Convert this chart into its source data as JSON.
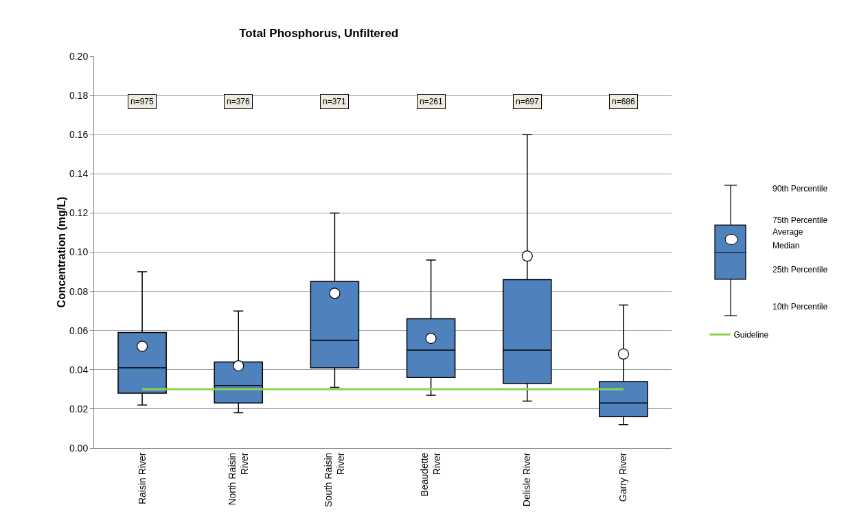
{
  "chart_data": {
    "type": "box",
    "title": "Total Phosphorus, Unfiltered",
    "ylabel": "Concentration (mg/L)",
    "categories": [
      "Raisin River",
      "North Raisin River",
      "South Raisin River",
      "Beaudette River",
      "Delisle River",
      "Garry River"
    ],
    "color": "#4f81bd",
    "boxes": [
      {
        "low": 0.022,
        "q1": 0.028,
        "median": 0.041,
        "q3": 0.059,
        "high": 0.09,
        "mean": 0.052
      },
      {
        "low": 0.018,
        "q1": 0.023,
        "median": 0.032,
        "q3": 0.044,
        "high": 0.07,
        "mean": 0.042
      },
      {
        "low": 0.031,
        "q1": 0.041,
        "median": 0.055,
        "q3": 0.085,
        "high": 0.12,
        "mean": 0.079
      },
      {
        "low": 0.027,
        "q1": 0.036,
        "median": 0.05,
        "q3": 0.066,
        "high": 0.096,
        "mean": 0.056
      },
      {
        "low": 0.024,
        "q1": 0.033,
        "median": 0.05,
        "q3": 0.086,
        "high": 0.16,
        "mean": 0.098
      },
      {
        "low": 0.012,
        "q1": 0.016,
        "median": 0.023,
        "q3": 0.034,
        "high": 0.073,
        "mean": 0.048
      }
    ],
    "series": [
      {
        "name": "Guideline",
        "type": "line",
        "color": "#92d050",
        "values": [
          0.03,
          0.03,
          0.03,
          0.03,
          0.03,
          0.03
        ]
      }
    ],
    "ylim": [
      0,
      0.2
    ],
    "yticks": [
      {
        "value": 0,
        "label": "0.00"
      },
      {
        "value": 0.02,
        "label": "0.02"
      },
      {
        "value": 0.04,
        "label": "0.04"
      },
      {
        "value": 0.06,
        "label": "0.06"
      },
      {
        "value": 0.08,
        "label": "0.08"
      },
      {
        "value": 0.1,
        "label": "0.10"
      },
      {
        "value": 0.12,
        "label": "0.12"
      },
      {
        "value": 0.14,
        "label": "0.14"
      },
      {
        "value": 0.16,
        "label": "0.16"
      },
      {
        "value": 0.18,
        "label": "0.18"
      },
      {
        "value": 0.2,
        "label": "0.20"
      }
    ],
    "grid": "y",
    "legend": "right",
    "annotations": [
      {
        "text": "n=975",
        "x": "Raisin River",
        "y": 0.177
      },
      {
        "text": "n=376",
        "x": "North Raisin River",
        "y": 0.177
      },
      {
        "text": "n=371",
        "x": "South Raisin River",
        "y": 0.177
      },
      {
        "text": "n=261",
        "x": "Beaudette River",
        "y": 0.177
      },
      {
        "text": "n=697",
        "x": "Delisle River",
        "y": 0.177
      },
      {
        "text": "n=686",
        "x": "Garry River",
        "y": 0.177
      },
      "90th Percentile",
      "75th Percentile",
      "Average",
      "Median",
      "25th Percentile",
      "10th Percentile"
    ]
  }
}
